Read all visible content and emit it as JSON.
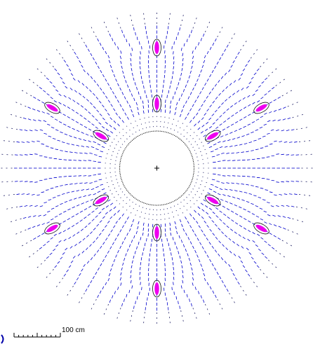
{
  "figure": {
    "scale_bar": {
      "label": "100 cm"
    },
    "colors": {
      "background": "#ffffff",
      "field_lines": "#0000cc",
      "coils": "#ee00ee",
      "coil_outline": "#111111",
      "boundary": "#000000",
      "axis_marker": "#000000"
    },
    "coil_groups": {
      "inner": {
        "count": 6,
        "first_angle_deg": 90
      },
      "outer": {
        "count": 6,
        "first_angle_deg": 90
      }
    },
    "field_line_spokes": 72
  }
}
